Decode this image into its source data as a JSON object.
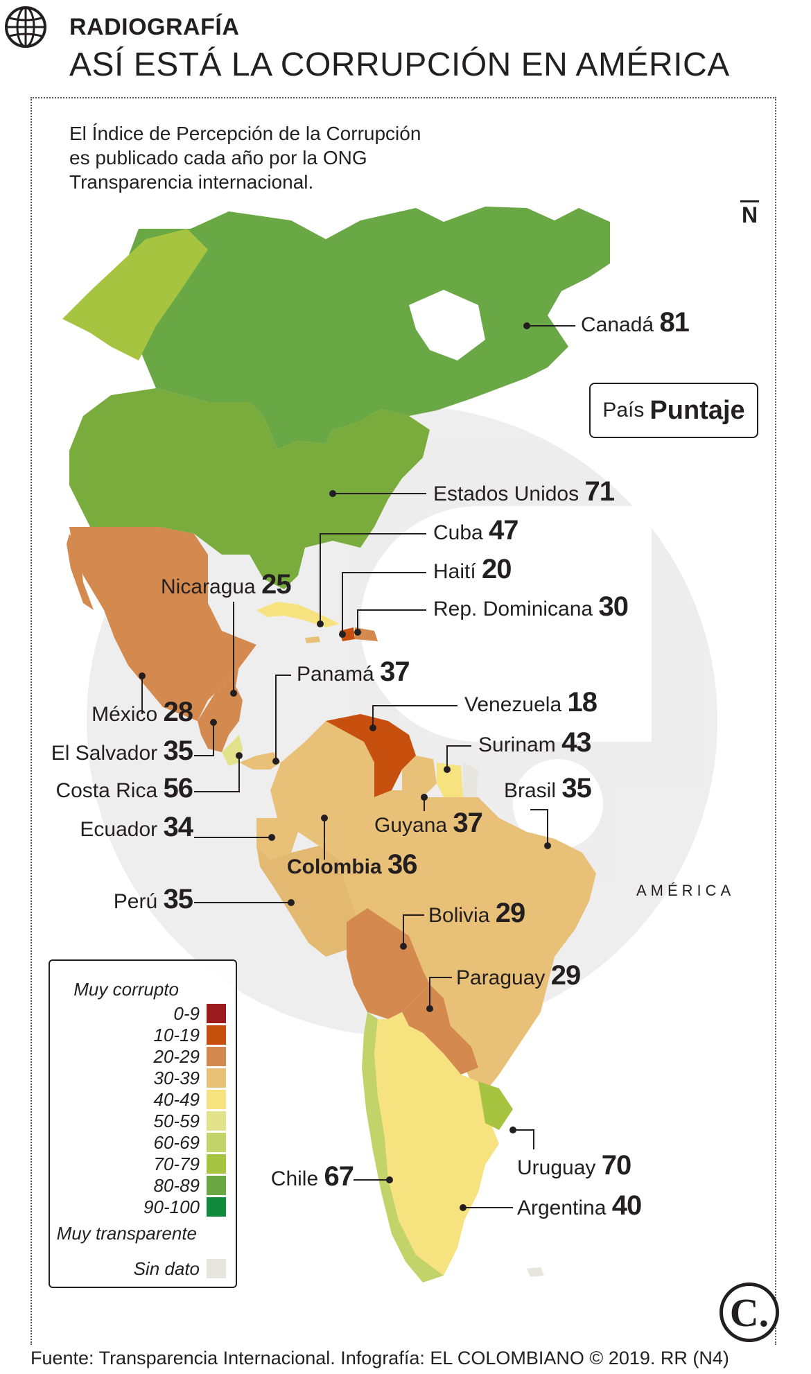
{
  "header": {
    "kicker": "RADIOGRAFÍA",
    "title": "ASÍ ESTÁ LA CORRUPCIÓN EN AMÉRICA",
    "intro": [
      "El Índice de Percepción de la Corrupción",
      "es publicado cada año por la ONG",
      "Transparencia internacional."
    ],
    "north": "N"
  },
  "key": {
    "country": "País",
    "score": "Puntaje"
  },
  "continent_label": "AMÉRICA",
  "countries": [
    {
      "name": "Canadá",
      "score": "81"
    },
    {
      "name": "Estados Unidos",
      "score": "71"
    },
    {
      "name": "Cuba",
      "score": "47"
    },
    {
      "name": "Haití",
      "score": "20"
    },
    {
      "name": "Rep. Dominicana",
      "score": "30"
    },
    {
      "name": "Nicaragua",
      "score": "25"
    },
    {
      "name": "Panamá",
      "score": "37"
    },
    {
      "name": "Venezuela",
      "score": "18"
    },
    {
      "name": "Surinam",
      "score": "43"
    },
    {
      "name": "Brasil",
      "score": "35"
    },
    {
      "name": "Guyana",
      "score": "37"
    },
    {
      "name": "México",
      "score": "28"
    },
    {
      "name": "El Salvador",
      "score": "35"
    },
    {
      "name": "Costa Rica",
      "score": "56"
    },
    {
      "name": "Ecuador",
      "score": "34"
    },
    {
      "name": "Colombia",
      "score": "36"
    },
    {
      "name": "Perú",
      "score": "35"
    },
    {
      "name": "Bolivia",
      "score": "29"
    },
    {
      "name": "Paraguay",
      "score": "29"
    },
    {
      "name": "Chile",
      "score": "67"
    },
    {
      "name": "Uruguay",
      "score": "70"
    },
    {
      "name": "Argentina",
      "score": "40"
    }
  ],
  "legend": {
    "top": "Muy corrupto",
    "bottom": "Muy transparente",
    "nodata": "Sin dato",
    "nodata_color": "#e6e6df",
    "ranges": [
      {
        "label": "0-9",
        "color": "#9b1b1e"
      },
      {
        "label": "10-19",
        "color": "#c8500f"
      },
      {
        "label": "20-29",
        "color": "#d48a4f"
      },
      {
        "label": "30-39",
        "color": "#e8c078"
      },
      {
        "label": "40-49",
        "color": "#f6e27e"
      },
      {
        "label": "50-59",
        "color": "#e3e28c"
      },
      {
        "label": "60-69",
        "color": "#c2d36a"
      },
      {
        "label": "70-79",
        "color": "#a6c43f"
      },
      {
        "label": "80-89",
        "color": "#6aa745"
      },
      {
        "label": "90-100",
        "color": "#118a3e"
      }
    ]
  },
  "badge": "C.",
  "footer": "Fuente: Transparencia Internacional. Infografía: EL COLOMBIANO © 2019. RR (N4)"
}
